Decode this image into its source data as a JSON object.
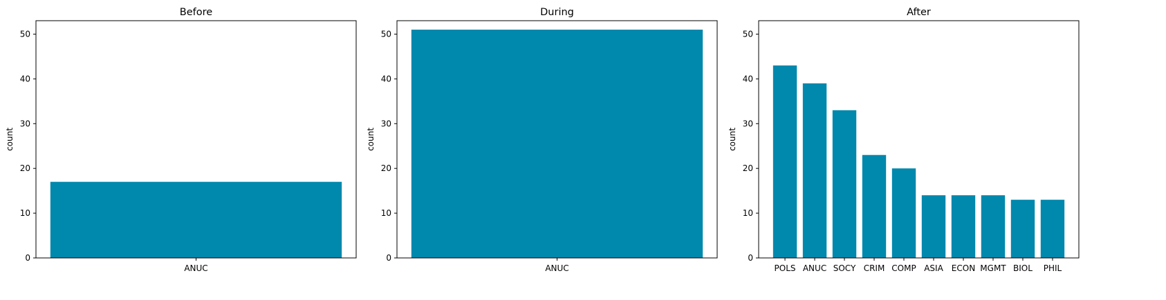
{
  "colors": {
    "bar": "#0088ad"
  },
  "chart_data": [
    {
      "type": "bar",
      "title": "Before",
      "xlabel": "",
      "ylabel": "count",
      "ylim": [
        0,
        53
      ],
      "yticks": [
        0,
        10,
        20,
        30,
        40,
        50
      ],
      "grid": false,
      "categories": [
        "ANUC"
      ],
      "values": [
        17
      ]
    },
    {
      "type": "bar",
      "title": "During",
      "xlabel": "",
      "ylabel": "count",
      "ylim": [
        0,
        53
      ],
      "yticks": [
        0,
        10,
        20,
        30,
        40,
        50
      ],
      "grid": false,
      "categories": [
        "ANUC"
      ],
      "values": [
        51
      ]
    },
    {
      "type": "bar",
      "title": "After",
      "xlabel": "",
      "ylabel": "count",
      "ylim": [
        0,
        53
      ],
      "yticks": [
        0,
        10,
        20,
        30,
        40,
        50
      ],
      "grid": false,
      "categories": [
        "POLS",
        "ANUC",
        "SOCY",
        "CRIM",
        "COMP",
        "ASIA",
        "ECON",
        "MGMT",
        "BIOL",
        "PHIL"
      ],
      "values": [
        43,
        39,
        33,
        23,
        20,
        14,
        14,
        14,
        13,
        13
      ]
    }
  ]
}
